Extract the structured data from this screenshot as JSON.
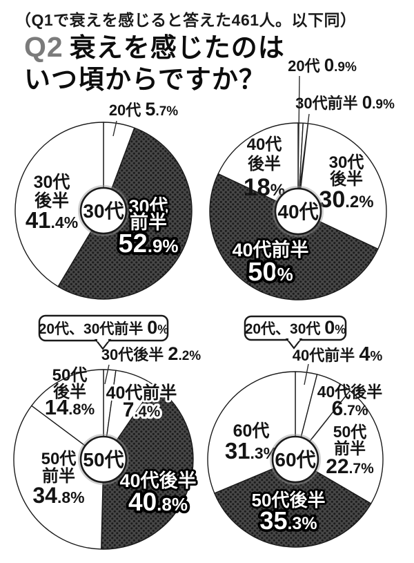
{
  "header": {
    "note": "（Q1で衰えを感じると答えた461人。以下同）",
    "q_label": "Q2",
    "title_line1": "衰えを感じたのは",
    "title_line2": "いつ頃からですか？"
  },
  "colors": {
    "background": "#ffffff",
    "ink": "#1a1a1a",
    "q_gray": "#7b7b7b",
    "dark_base": "#474747",
    "dark_dot": "#1c1c1c",
    "white": "#ffffff"
  },
  "chart_data": [
    {
      "type": "pie",
      "center_label": "30代",
      "unit": "%",
      "slices": [
        {
          "label": "20代",
          "value": 5.7,
          "display": "5.7%",
          "fill": "white"
        },
        {
          "label": "30代前半",
          "value": 52.9,
          "display": "52.9%",
          "fill": "dark"
        },
        {
          "label": "30代後半",
          "value": 41.4,
          "display": "41.4%",
          "fill": "white"
        }
      ]
    },
    {
      "type": "pie",
      "center_label": "40代",
      "unit": "%",
      "slices": [
        {
          "label": "20代",
          "value": 0.9,
          "display": "0.9%",
          "fill": "white"
        },
        {
          "label": "30代前半",
          "value": 0.9,
          "display": "0.9%",
          "fill": "white"
        },
        {
          "label": "30代後半",
          "value": 30.2,
          "display": "30.2%",
          "fill": "white"
        },
        {
          "label": "40代前半",
          "value": 50,
          "display": "50%",
          "fill": "dark"
        },
        {
          "label": "40代後半",
          "value": 18,
          "display": "18%",
          "fill": "white"
        }
      ]
    },
    {
      "type": "pie",
      "center_label": "50代",
      "unit": "%",
      "callout": {
        "label": "20代、30代前半",
        "display": "0%"
      },
      "slices": [
        {
          "label": "30代後半",
          "value": 2.2,
          "display": "2.2%",
          "fill": "white"
        },
        {
          "label": "40代前半",
          "value": 7.4,
          "display": "7.4%",
          "fill": "white"
        },
        {
          "label": "40代後半",
          "value": 40.8,
          "display": "40.8%",
          "fill": "dark"
        },
        {
          "label": "50代前半",
          "value": 34.8,
          "display": "34.8%",
          "fill": "white"
        },
        {
          "label": "50代後半",
          "value": 14.8,
          "display": "14.8%",
          "fill": "white"
        }
      ]
    },
    {
      "type": "pie",
      "center_label": "60代",
      "unit": "%",
      "callout": {
        "label": "20代、30代",
        "display": "0%"
      },
      "slices": [
        {
          "label": "40代前半",
          "value": 4,
          "display": "4%",
          "fill": "white"
        },
        {
          "label": "40代後半",
          "value": 6.7,
          "display": "6.7%",
          "fill": "white"
        },
        {
          "label": "50代前半",
          "value": 22.7,
          "display": "22.7%",
          "fill": "white"
        },
        {
          "label": "50代後半",
          "value": 35.3,
          "display": "35.3%",
          "fill": "dark"
        },
        {
          "label": "60代",
          "value": 31.3,
          "display": "31.3%",
          "fill": "white"
        }
      ]
    }
  ]
}
